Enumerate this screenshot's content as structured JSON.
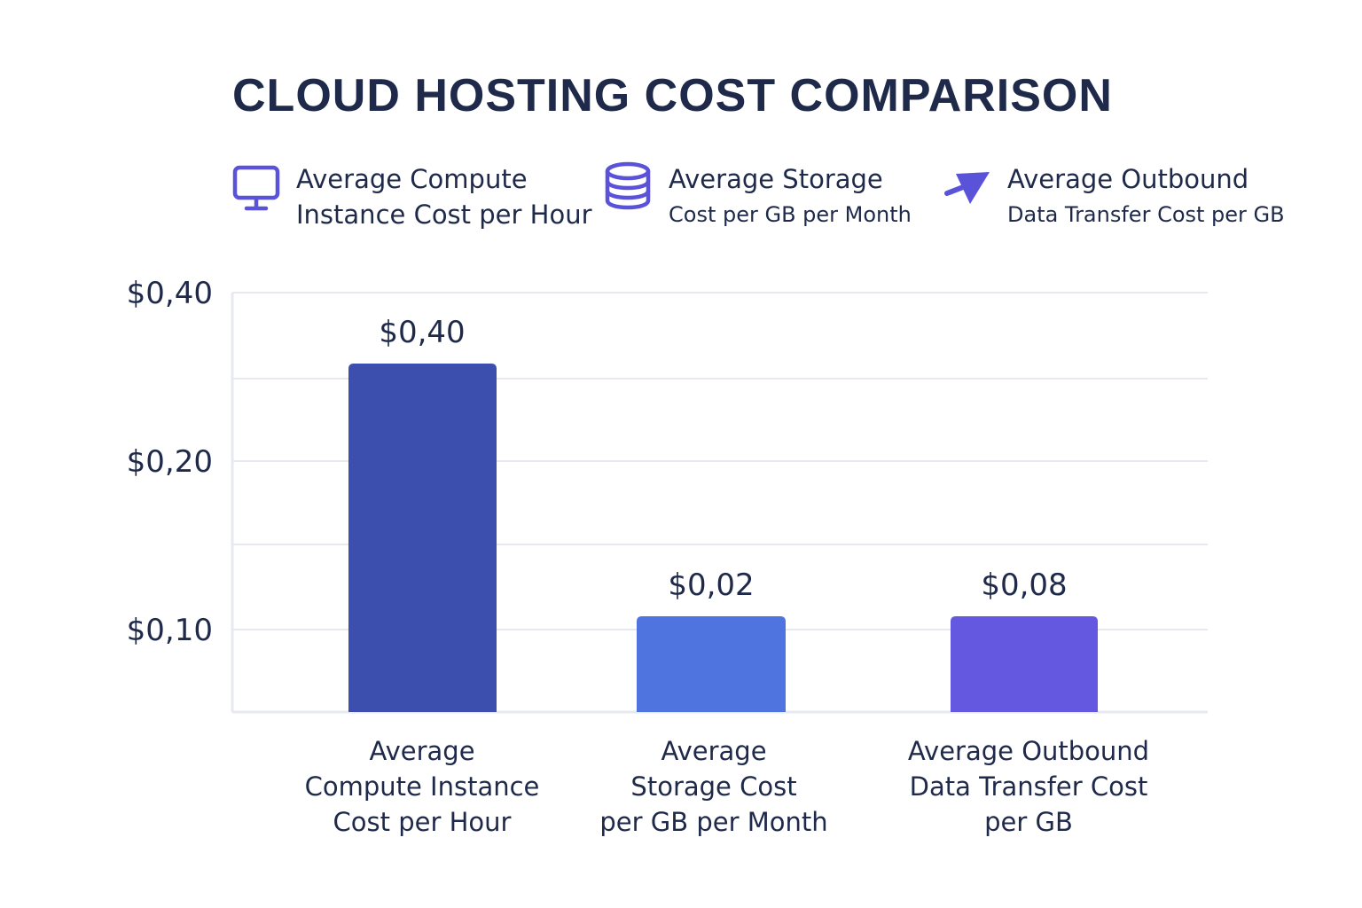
{
  "chart_data": {
    "type": "bar",
    "title": "CLOUD HOSTING COST COMPARISON",
    "categories": [
      [
        "Average",
        "Compute Instance",
        "Cost per Hour"
      ],
      [
        "Average",
        "Storage Cost",
        "per GB per Month"
      ],
      [
        "Average Outbound",
        "Data Transfer Cost",
        "per GB"
      ]
    ],
    "values": [
      0.4,
      0.02,
      0.08
    ],
    "value_labels": [
      "$0,40",
      "$0,02",
      "$0,08"
    ],
    "bar_heights_as_drawn": [
      0.29,
      0.06,
      0.06
    ],
    "colors": [
      "#3c4fae",
      "#4f74e0",
      "#6558e0"
    ],
    "y_ticks": [
      {
        "value": 0.1,
        "label": "$0,10"
      },
      {
        "value": 0.2,
        "label": "$0,20"
      },
      {
        "value": 0.4,
        "label": "$0,40"
      }
    ],
    "ylim": [
      0.0,
      0.35
    ],
    "grid": true,
    "legend_position": "top",
    "legend": [
      {
        "line1": "Average Compute",
        "line2": "Instance Cost per Hour",
        "icon": "monitor-icon"
      },
      {
        "line1": "Average Storage",
        "line2": "Cost per GB per Month",
        "icon": "database-icon"
      },
      {
        "line1": "Average Outbound",
        "line2": "Data Transfer Cost per GB",
        "icon": "arrow-icon"
      }
    ]
  },
  "theme": {
    "text": "#1f2a4a",
    "grid": "#e6e9f0",
    "icon": "#5a52d8"
  }
}
